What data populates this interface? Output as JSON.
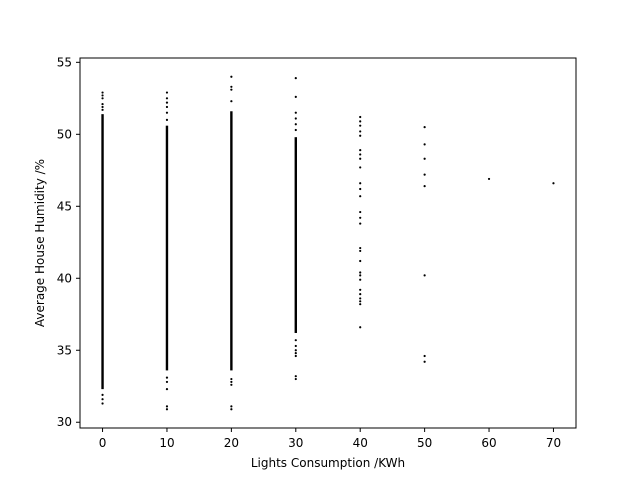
{
  "chart_data": {
    "type": "scatter",
    "xlabel": "Lights Consumption /KWh",
    "ylabel": "Average House Humidity /%",
    "xlim": [
      -3.5,
      73.5
    ],
    "ylim": [
      29.6,
      55.3
    ],
    "xticks": [
      0,
      10,
      20,
      30,
      40,
      50,
      60,
      70
    ],
    "yticks": [
      30,
      35,
      40,
      45,
      50,
      55
    ],
    "grid": false,
    "marker_color": "#000000",
    "columns": [
      {
        "x": 0,
        "dense_range": [
          32.3,
          51.4
        ],
        "sparse": [
          31.3,
          31.6,
          31.9,
          51.7,
          51.9,
          52.1,
          52.5,
          52.7,
          52.9
        ]
      },
      {
        "x": 10,
        "dense_range": [
          33.6,
          50.6
        ],
        "sparse": [
          30.9,
          31.1,
          32.3,
          32.8,
          33.1,
          51.0,
          51.5,
          51.9,
          52.2,
          52.5,
          52.9
        ]
      },
      {
        "x": 20,
        "dense_range": [
          33.6,
          51.6
        ],
        "sparse": [
          30.9,
          31.1,
          32.6,
          32.8,
          33.0,
          52.3,
          53.1,
          53.3,
          54.0
        ]
      },
      {
        "x": 30,
        "dense_range": [
          36.2,
          49.8
        ],
        "sparse": [
          33.0,
          33.2,
          34.6,
          34.8,
          35.0,
          35.3,
          35.7,
          50.3,
          50.7,
          51.1,
          51.5,
          52.6,
          53.9
        ]
      },
      {
        "x": 40,
        "dense_range": null,
        "sparse": [
          36.6,
          38.2,
          38.4,
          38.6,
          38.9,
          39.2,
          39.9,
          40.2,
          40.4,
          41.2,
          41.9,
          42.1,
          43.8,
          44.2,
          44.6,
          45.7,
          46.2,
          46.6,
          47.7,
          48.3,
          48.6,
          48.9,
          49.9,
          50.2,
          50.6,
          50.9,
          51.2
        ]
      },
      {
        "x": 50,
        "dense_range": null,
        "sparse": [
          34.2,
          34.6,
          40.2,
          46.4,
          47.2,
          48.3,
          49.3,
          50.5
        ]
      },
      {
        "x": 60,
        "dense_range": null,
        "sparse": [
          46.9
        ]
      },
      {
        "x": 70,
        "dense_range": null,
        "sparse": [
          46.6
        ]
      }
    ]
  }
}
